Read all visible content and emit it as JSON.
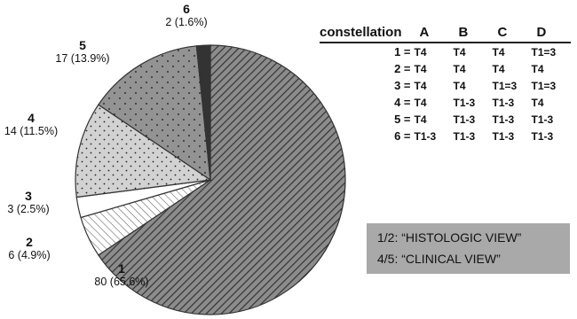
{
  "chart_data": {
    "type": "pie",
    "slices": [
      {
        "id": "1",
        "count": 80,
        "percent_label": "80 (65.6%)",
        "pattern": "diagonal-dense"
      },
      {
        "id": "2",
        "count": 6,
        "percent_label": "6 (4.9%)",
        "pattern": "diagonal-light"
      },
      {
        "id": "3",
        "count": 3,
        "percent_label": "3 (2.5%)",
        "pattern": "white"
      },
      {
        "id": "4",
        "count": 14,
        "percent_label": "14 (11.5%)",
        "pattern": "light-dots"
      },
      {
        "id": "5",
        "count": 17,
        "percent_label": "17 (13.9%)",
        "pattern": "gray-dots"
      },
      {
        "id": "6",
        "count": 2,
        "percent_label": "2 (1.6%)",
        "pattern": "dark"
      }
    ],
    "colors": {
      "outline": "#333333",
      "dark": "#333333",
      "gray": "#8c8c8c",
      "light": "#d2d2d2"
    }
  },
  "table": {
    "headers": [
      "constellation",
      "A",
      "B",
      "C",
      "D"
    ],
    "rows": [
      {
        "key": "1 =",
        "cells": [
          "T4",
          "T4",
          "T4",
          "T1=3"
        ]
      },
      {
        "key": "2 =",
        "cells": [
          "T4",
          "T4",
          "T4",
          "T4"
        ]
      },
      {
        "key": "3 =",
        "cells": [
          "T4",
          "T4",
          "T1=3",
          "T1=3"
        ]
      },
      {
        "key": "4 =",
        "cells": [
          "T4",
          "T1-3",
          "T1-3",
          "T4"
        ]
      },
      {
        "key": "5 =",
        "cells": [
          "T4",
          "T1-3",
          "T1-3",
          "T1-3"
        ]
      },
      {
        "key": "6 =",
        "cells": [
          "T1-3",
          "T1-3",
          "T1-3",
          "T1-3"
        ]
      }
    ]
  },
  "views": {
    "line1": "1/2:  “HISTOLOGIC VIEW”",
    "line2": "4/5:  “CLINICAL VIEW”"
  }
}
